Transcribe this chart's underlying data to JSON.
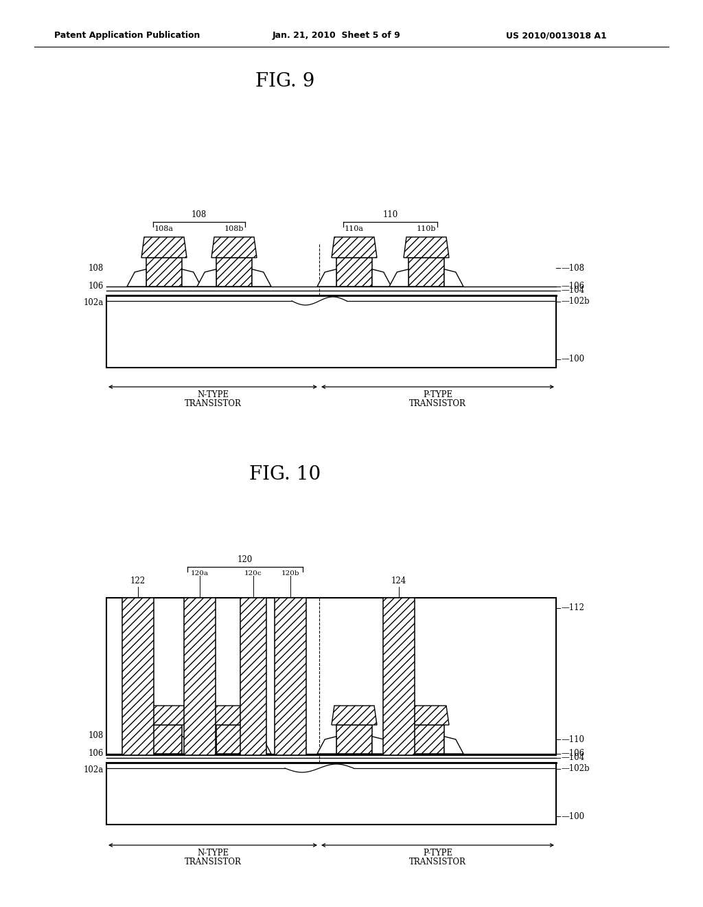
{
  "fig9_title": "FIG. 9",
  "fig10_title": "FIG. 10",
  "header_left": "Patent Application Publication",
  "header_mid": "Jan. 21, 2010  Sheet 5 of 9",
  "header_right": "US 2010/0013018 A1",
  "bg_color": "#ffffff",
  "label_fs": 8.5,
  "title_fs": 20,
  "header_fs": 9
}
